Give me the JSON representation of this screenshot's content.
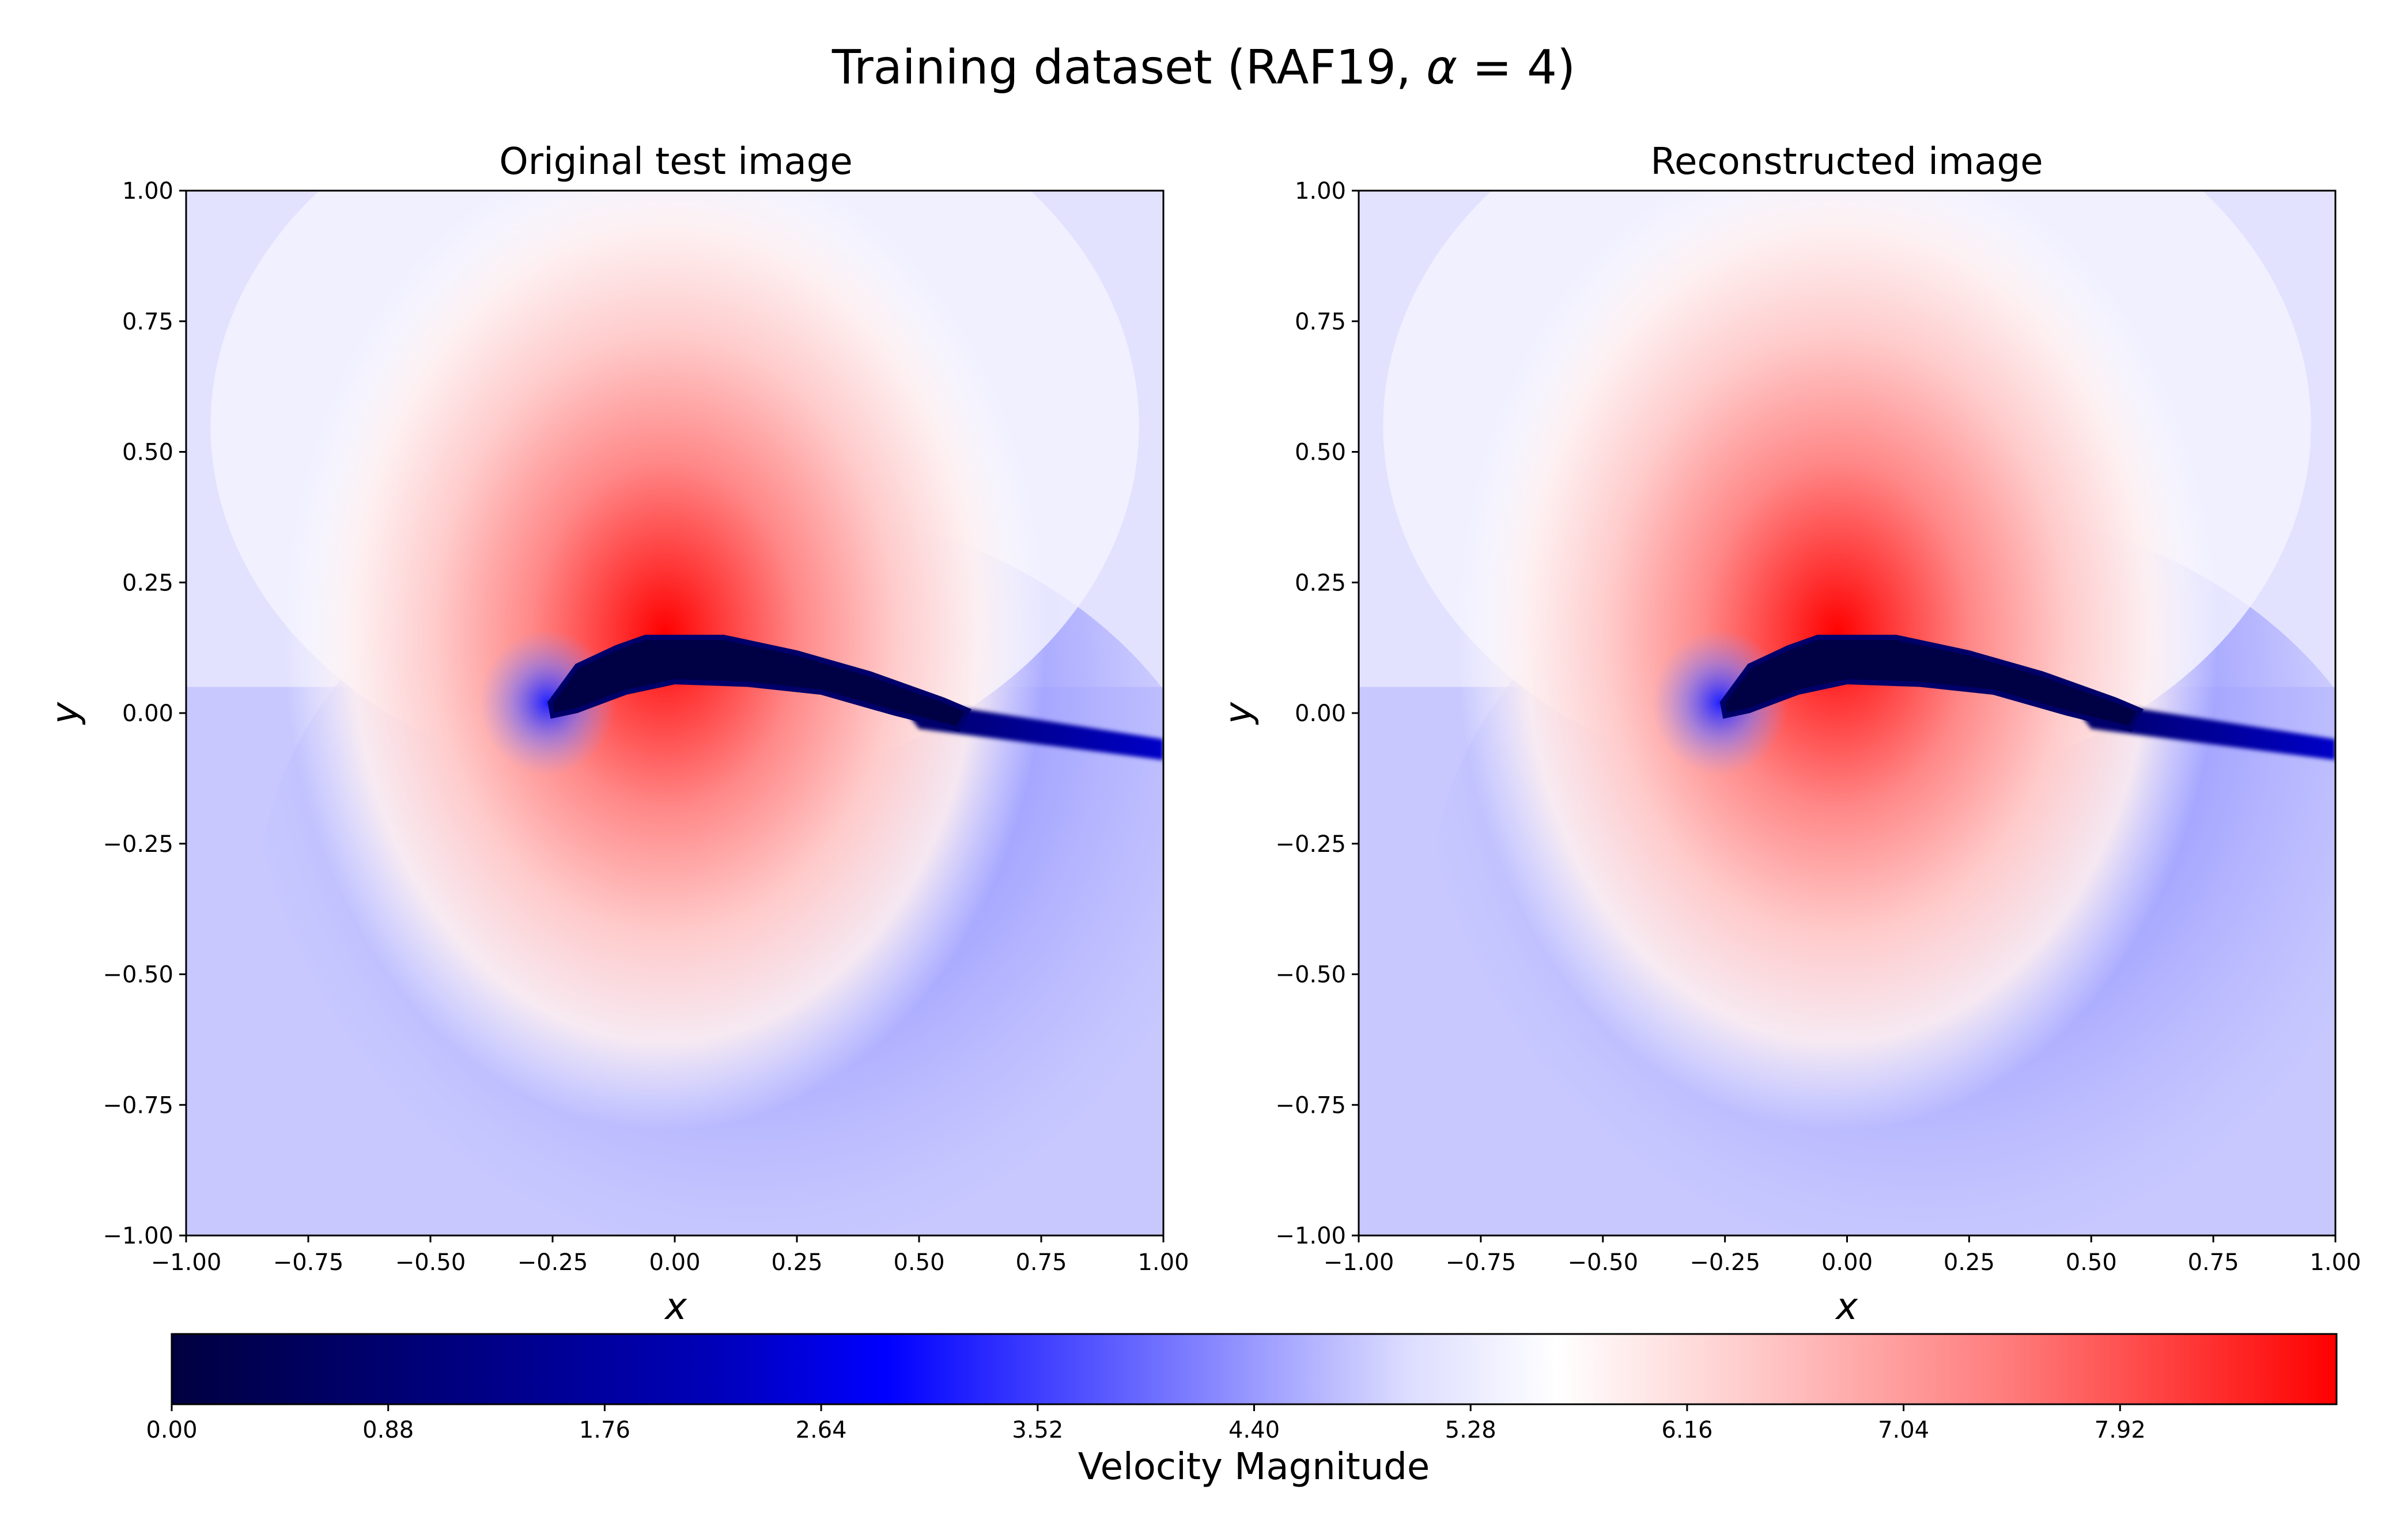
{
  "figure": {
    "title_main": "Training dataset (RAF19, ",
    "title_symbol": "α",
    "title_tail": " = 4)"
  },
  "colors": {
    "cmap_low": "#000040",
    "cmap_mid_blue": "#0000ff",
    "cmap_white": "#ffffff",
    "cmap_high": "#ff0000",
    "background": "#ffffff",
    "axis": "#000000"
  },
  "chart_data": [
    {
      "type": "heatmap",
      "title": "Original test image",
      "xlabel": "x",
      "ylabel": "y",
      "xlim": [
        -1.0,
        1.0
      ],
      "ylim": [
        -1.0,
        1.0
      ],
      "xticks": [
        "−1.00",
        "−0.75",
        "−0.50",
        "−0.25",
        "0.00",
        "0.25",
        "0.50",
        "0.75",
        "1.00"
      ],
      "yticks": [
        "1.00",
        "0.75",
        "0.50",
        "0.25",
        "0.00",
        "−0.25",
        "−0.50",
        "−0.75",
        "−1.00"
      ],
      "colormap": "seismic",
      "value_range": [
        0.0,
        8.8
      ],
      "freestream_value": 4.4,
      "peak_region": {
        "x": -0.05,
        "y": 0.15,
        "value": 8.8
      },
      "airfoil_body_value": 0.0,
      "wake_value": 0.5
    },
    {
      "type": "heatmap",
      "title": "Reconstructed image",
      "xlabel": "x",
      "ylabel": "y",
      "xlim": [
        -1.0,
        1.0
      ],
      "ylim": [
        -1.0,
        1.0
      ],
      "xticks": [
        "−1.00",
        "−0.75",
        "−0.50",
        "−0.25",
        "0.00",
        "0.25",
        "0.50",
        "0.75",
        "1.00"
      ],
      "yticks": [
        "1.00",
        "0.75",
        "0.50",
        "0.25",
        "0.00",
        "−0.25",
        "−0.50",
        "−0.75",
        "−1.00"
      ],
      "colormap": "seismic",
      "value_range": [
        0.0,
        8.8
      ],
      "freestream_value": 4.4,
      "peak_region": {
        "x": -0.05,
        "y": 0.15,
        "value": 8.8
      },
      "airfoil_body_value": 0.0,
      "wake_value": 0.5
    }
  ],
  "colorbar": {
    "label": "Velocity Magnitude",
    "range": [
      0.0,
      8.8
    ],
    "ticks": [
      "0.00",
      "0.88",
      "1.76",
      "2.64",
      "3.52",
      "4.40",
      "5.28",
      "6.16",
      "7.04",
      "7.92"
    ],
    "tick_values": [
      0.0,
      0.88,
      1.76,
      2.64,
      3.52,
      4.4,
      5.28,
      6.16,
      7.04,
      7.92
    ]
  }
}
